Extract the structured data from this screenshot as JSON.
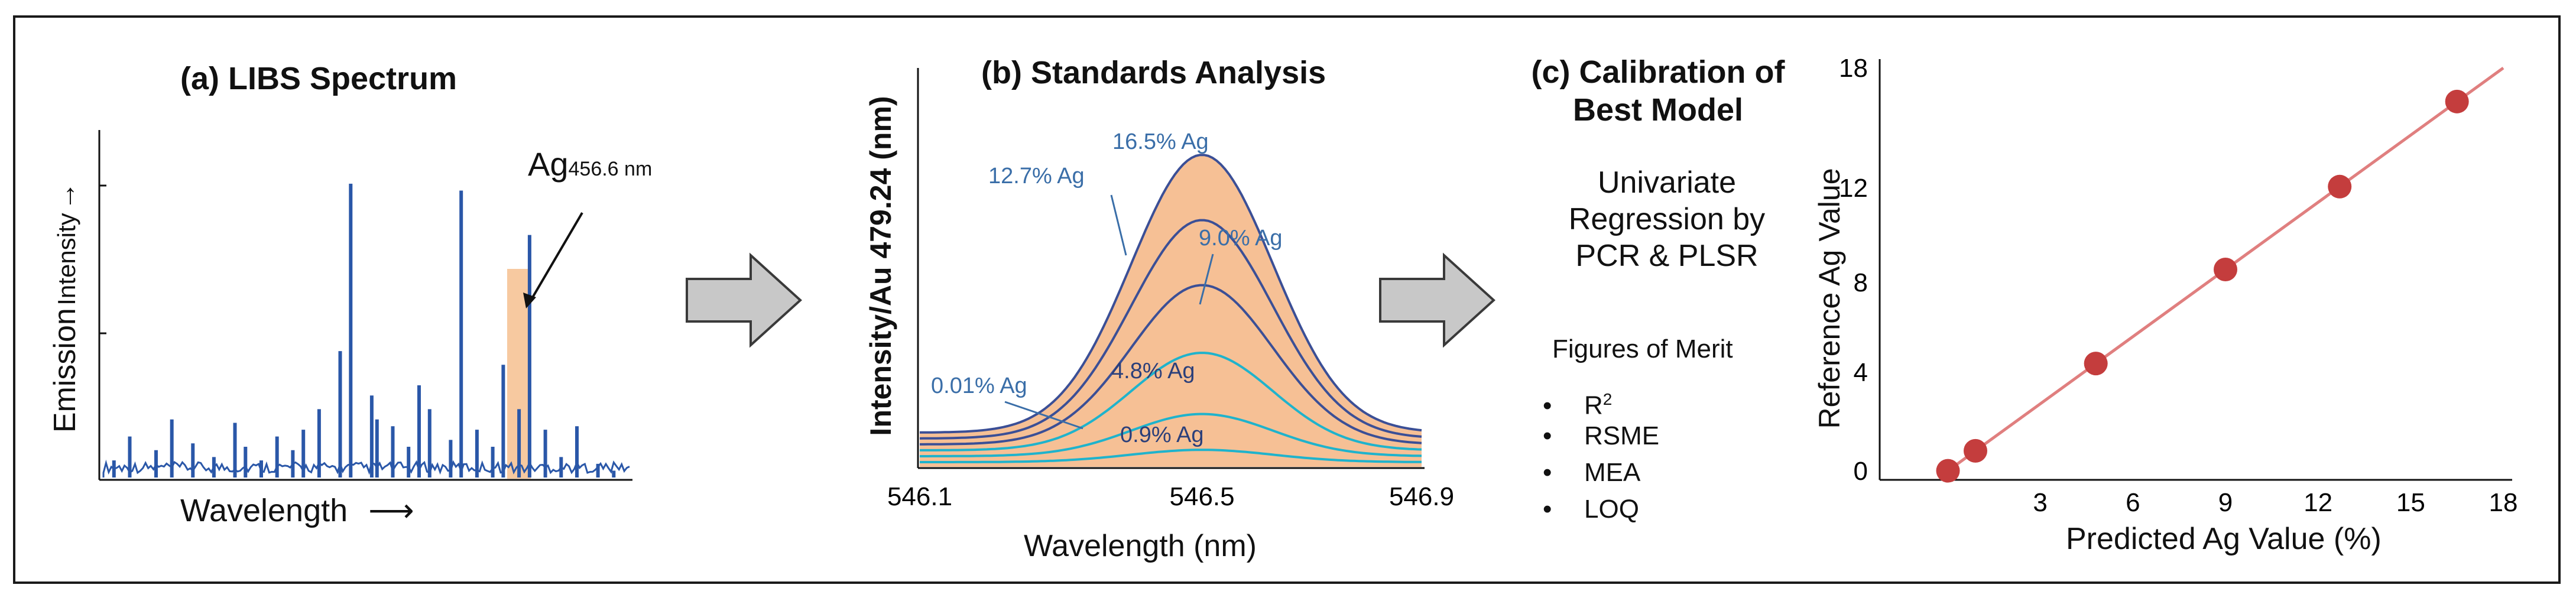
{
  "panel_a": {
    "title": "(a) LIBS Spectrum",
    "ylabel_main": "Emission",
    "ylabel_small": "Intensity",
    "ylabel_arrow": "→",
    "xlabel": "Wavelength",
    "xlabel_arrow": "⟶",
    "annotation_main": "Ag",
    "annotation_sub": "456.6 nm",
    "colors": {
      "spectrum": "#2a57a8",
      "highlight": "#f6c08f"
    }
  },
  "panel_b": {
    "title": "(b) Standards Analysis",
    "ylabel": "Intensity/Au 479.24 (nm)",
    "xlabel": "Wavelength (nm)",
    "colors": {
      "fill": "#f5b98a",
      "dark": "#3b4f96",
      "light": "#1fb3cc"
    }
  },
  "panel_c": {
    "title_line1": "(c) Calibration of",
    "title_line2": "Best Model",
    "desc_line1": "Univariate",
    "desc_line2": "Regression by",
    "desc_line3": "PCR & PLSR",
    "merit_title": "Figures of Merit",
    "merit_items": [
      {
        "main": "R",
        "sup": "2"
      },
      {
        "main": "RSME",
        "sup": ""
      },
      {
        "main": "MEA",
        "sup": ""
      },
      {
        "main": "LOQ",
        "sup": ""
      }
    ]
  },
  "panel_d": {
    "ylabel": "Reference Ag Value",
    "xlabel": "Predicted Ag Value (%)",
    "colors": {
      "line": "#e07f7f",
      "point": "#c43d3d"
    }
  },
  "chart_data": [
    {
      "type": "line",
      "description_ref": "panel_a",
      "title": "(a) LIBS Spectrum",
      "xlabel": "Wavelength",
      "ylabel": "Emission Intensity",
      "ylim": [
        0,
        1
      ],
      "annotations": [
        "Ag456.6 nm"
      ],
      "series": [
        {
          "x": [
            0.02,
            0.05,
            0.1,
            0.13,
            0.17,
            0.21,
            0.25,
            0.27,
            0.3,
            0.33,
            0.36,
            0.38,
            0.41,
            0.45,
            0.47,
            0.51,
            0.52,
            0.55,
            0.58,
            0.6,
            0.62,
            0.66,
            0.68,
            0.71,
            0.74,
            0.76,
            0.79,
            0.81,
            0.84,
            0.87,
            0.9,
            0.94,
            0.97
          ],
          "y": [
            0.05,
            0.12,
            0.08,
            0.17,
            0.1,
            0.06,
            0.16,
            0.09,
            0.05,
            0.12,
            0.08,
            0.14,
            0.2,
            0.37,
            0.86,
            0.24,
            0.17,
            0.15,
            0.09,
            0.27,
            0.2,
            0.11,
            0.84,
            0.14,
            0.09,
            0.33,
            0.2,
            0.71,
            0.14,
            0.06,
            0.15,
            0.04,
            0.02
          ]
        }
      ]
    },
    {
      "type": "line",
      "description_ref": "panel_b",
      "title": "(b) Standards Analysis",
      "xlabel": "Wavelength (nm)",
      "ylabel": "Intensity/Au 479.24 (nm)",
      "x_ticks": [
        "546.1",
        "546.5",
        "546.9"
      ],
      "xlim": [
        546.1,
        546.9
      ],
      "series": [
        {
          "name": "16.5% Ag",
          "peak": 1.0
        },
        {
          "name": "12.7% Ag",
          "peak": 0.77
        },
        {
          "name": "9.0% Ag",
          "peak": 0.55
        },
        {
          "name": "4.8% Ag",
          "peak": 0.33
        },
        {
          "name": "0.9% Ag",
          "peak": 0.14
        },
        {
          "name": "0.01% Ag",
          "peak": 0.04
        }
      ],
      "peak_x": 546.55
    },
    {
      "type": "scatter",
      "description_ref": "panel_d",
      "xlabel": "Predicted Ag Value (%)",
      "ylabel": "Reference Ag Value",
      "x_ticks": [
        "3",
        "6",
        "9",
        "12",
        "15",
        "18"
      ],
      "y_ticks": [
        "0",
        "4",
        "8",
        "12",
        "18"
      ],
      "xlim": [
        0,
        18
      ],
      "ylim": [
        0,
        18
      ],
      "x": [
        0.01,
        0.9,
        4.8,
        9.0,
        12.7,
        16.5
      ],
      "y": [
        0.01,
        0.9,
        4.8,
        9.0,
        12.7,
        16.5
      ],
      "fit_line": true
    }
  ]
}
